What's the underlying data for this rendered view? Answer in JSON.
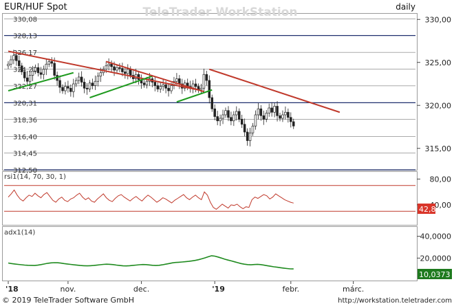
{
  "header": {
    "instrument": "EUR/HUF Spot",
    "watermark": "TeleTrader WorkStation",
    "period": "daily"
  },
  "footer": {
    "copyright": "© 2019 TeleTrader Software GmbH",
    "url": "http://workstation.teletrader.com"
  },
  "colors": {
    "candle": "#222222",
    "trend_down": "#c0392b",
    "trend_up": "#1e9a1e",
    "level_line": "#1f2f6e",
    "rsi_line": "#c0392b",
    "rsi_band": "#c0392b",
    "adx_line": "#1e8a1e",
    "rsi_badge_bg": "#d9352a",
    "adx_badge_bg": "#1e7a1e"
  },
  "chart_data": [
    {
      "type": "candlestick",
      "panel": "price",
      "y_ticks_right": [
        "330,00",
        "325,00",
        "320,00",
        "315,00"
      ],
      "ylim": [
        312.5,
        330.5
      ],
      "x_ticks": [
        "'18",
        "nov.",
        "dec.",
        "'19",
        "febr.",
        "márc."
      ],
      "level_lines": [
        {
          "label": "330,08",
          "value": 330.08
        },
        {
          "label": "328,13",
          "value": 328.13
        },
        {
          "label": "326,17",
          "value": 326.17
        },
        {
          "label": "324,22",
          "value": 324.22
        },
        {
          "label": "322,27",
          "value": 322.27
        },
        {
          "label": "320,31",
          "value": 320.31
        },
        {
          "label": "318,36",
          "value": 318.36
        },
        {
          "label": "316,40",
          "value": 316.4
        },
        {
          "label": "314,45",
          "value": 314.45
        },
        {
          "label": "312,50",
          "value": 312.5
        }
      ],
      "closes": [
        324.8,
        325.3,
        325.8,
        325.2,
        324.6,
        323.9,
        323.2,
        322.8,
        323.5,
        324.0,
        324.4,
        323.8,
        323.6,
        324.2,
        324.8,
        325.1,
        324.9,
        323.5,
        322.9,
        322.1,
        321.7,
        322.2,
        322.0,
        321.6,
        322.5,
        322.9,
        323.3,
        322.7,
        322.0,
        321.9,
        322.6,
        322.3,
        322.8,
        323.4,
        323.8,
        324.2,
        324.6,
        324.8,
        324.5,
        324.1,
        324.4,
        324.3,
        323.9,
        323.7,
        324.2,
        323.5,
        323.1,
        323.6,
        323.0,
        322.6,
        322.4,
        322.8,
        323.1,
        322.7,
        322.3,
        321.9,
        322.2,
        322.4,
        322.0,
        321.7,
        322.3,
        322.8,
        323.1,
        322.5,
        322.0,
        322.6,
        322.2,
        322.0,
        322.5,
        322.2,
        321.8,
        322.0,
        323.6,
        322.9,
        320.9,
        319.6,
        318.7,
        318.2,
        318.5,
        318.9,
        319.4,
        318.6,
        318.2,
        318.9,
        319.3,
        318.4,
        317.8,
        316.9,
        315.9,
        316.8,
        317.6,
        318.9,
        319.6,
        318.8,
        318.4,
        319.1,
        319.7,
        319.2,
        319.9,
        318.8,
        318.5,
        318.9,
        319.2,
        318.6,
        318.1,
        317.6
      ],
      "trendlines": [
        {
          "color": "down",
          "from": [
            0,
            326.3
          ],
          "to": [
            70,
            321.8
          ]
        },
        {
          "color": "up",
          "from": [
            0,
            321.7
          ],
          "to": [
            24,
            323.8
          ]
        },
        {
          "color": "up",
          "from": [
            30,
            320.9
          ],
          "to": [
            53,
            323.4
          ]
        },
        {
          "color": "down",
          "from": [
            36,
            325.1
          ],
          "to": [
            72,
            321.6
          ]
        },
        {
          "color": "up",
          "from": [
            62,
            320.4
          ],
          "to": [
            75,
            321.8
          ]
        },
        {
          "color": "down",
          "from": [
            74,
            324.2
          ],
          "to": [
            122,
            319.2
          ]
        }
      ]
    },
    {
      "type": "line",
      "panel": "rsi",
      "label": "rsi1(14, 70, 30, 1)",
      "y_ticks_right": [
        "80,00",
        "40,00"
      ],
      "ylim": [
        10,
        90
      ],
      "bands": [
        70,
        30
      ],
      "last_value": "42,8",
      "values": [
        52,
        57,
        63,
        55,
        49,
        46,
        51,
        55,
        53,
        58,
        54,
        51,
        56,
        59,
        53,
        47,
        44,
        49,
        52,
        47,
        45,
        49,
        51,
        55,
        58,
        52,
        48,
        51,
        46,
        44,
        49,
        53,
        57,
        51,
        47,
        45,
        50,
        54,
        56,
        52,
        49,
        46,
        50,
        53,
        49,
        46,
        51,
        55,
        52,
        48,
        44,
        47,
        51,
        49,
        46,
        43,
        47,
        50,
        53,
        56,
        51,
        48,
        52,
        55,
        51,
        48,
        60,
        55,
        44,
        36,
        33,
        37,
        41,
        38,
        35,
        40,
        39,
        41,
        37,
        34,
        37,
        36,
        48,
        52,
        50,
        53,
        56,
        54,
        49,
        52,
        57,
        54,
        51,
        48,
        46,
        44,
        42.8
      ]
    },
    {
      "type": "line",
      "panel": "adx",
      "label": "adx1(14)",
      "y_ticks_right": [
        "40,0000",
        "20,0000"
      ],
      "ylim": [
        0,
        48
      ],
      "last_value": "10,0373",
      "values": [
        15.5,
        15.0,
        14.6,
        14.2,
        13.9,
        13.6,
        13.4,
        13.3,
        13.2,
        13.5,
        14.0,
        14.6,
        15.2,
        15.6,
        15.8,
        15.7,
        15.4,
        15.0,
        14.6,
        14.2,
        13.8,
        13.5,
        13.2,
        13.0,
        12.9,
        13.0,
        13.2,
        13.5,
        13.9,
        14.2,
        14.4,
        14.3,
        14.0,
        13.6,
        13.2,
        12.9,
        12.8,
        13.0,
        13.3,
        13.6,
        13.9,
        14.1,
        14.0,
        13.7,
        13.4,
        13.2,
        13.4,
        13.8,
        14.4,
        15.0,
        15.6,
        16.0,
        16.2,
        16.4,
        16.7,
        17.0,
        17.4,
        17.9,
        18.5,
        19.3,
        20.2,
        21.2,
        22.2,
        21.8,
        21.0,
        20.0,
        19.0,
        18.2,
        17.4,
        16.6,
        15.8,
        15.0,
        14.4,
        14.0,
        13.8,
        14.1,
        14.3,
        14.0,
        13.5,
        13.0,
        12.5,
        12.0,
        11.6,
        11.2,
        10.8,
        10.4,
        10.1,
        10.0373
      ]
    }
  ]
}
